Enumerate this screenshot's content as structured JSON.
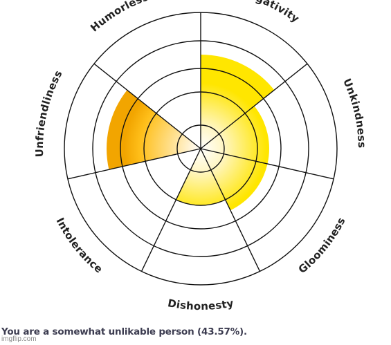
{
  "chart_data": {
    "type": "polar-area",
    "categories": [
      "Negativity",
      "Unkindness",
      "Gloominess",
      "Dishonesty",
      "Intolerance",
      "Unfriendliness",
      "Humorlessness"
    ],
    "values": [
      3.5,
      2.5,
      2.5,
      2.0,
      0,
      3.5,
      0
    ],
    "rmax": 5,
    "rings": 5,
    "grid": true,
    "colors": {
      "fill_light": "#ffffff",
      "fill_mid": "#ffe24a",
      "fill_dark": "#ffc400",
      "unfriendliness_dark": "#f3a900",
      "grid": "#111111"
    }
  },
  "result_text": "You are a somewhat unlikable person (43.57%).",
  "watermark": "imgflip.com"
}
